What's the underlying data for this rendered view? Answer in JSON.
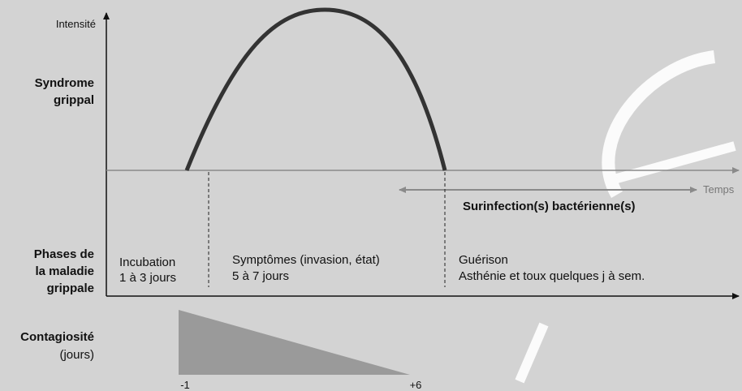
{
  "y_axis_label": "Intensité",
  "x_axis_label": "Temps",
  "rows": {
    "syndrome": [
      "Syndrome",
      "grippal"
    ],
    "phases": [
      "Phases de",
      "la maladie",
      "grippale"
    ],
    "contagion": {
      "title": "Contagiosité",
      "unit": "(jours)"
    }
  },
  "surinfection": "Surinfection(s) bactérienne(s)",
  "phases": [
    {
      "name": "Incubation",
      "duration": "1 à 3 jours"
    },
    {
      "name": "Symptômes (invasion, état)",
      "duration": "5 à 7 jours"
    },
    {
      "name": "Guérison",
      "duration": "Asthénie et toux quelques j à sem."
    }
  ],
  "contagion_range": {
    "start": "-1",
    "end": "+6"
  }
}
